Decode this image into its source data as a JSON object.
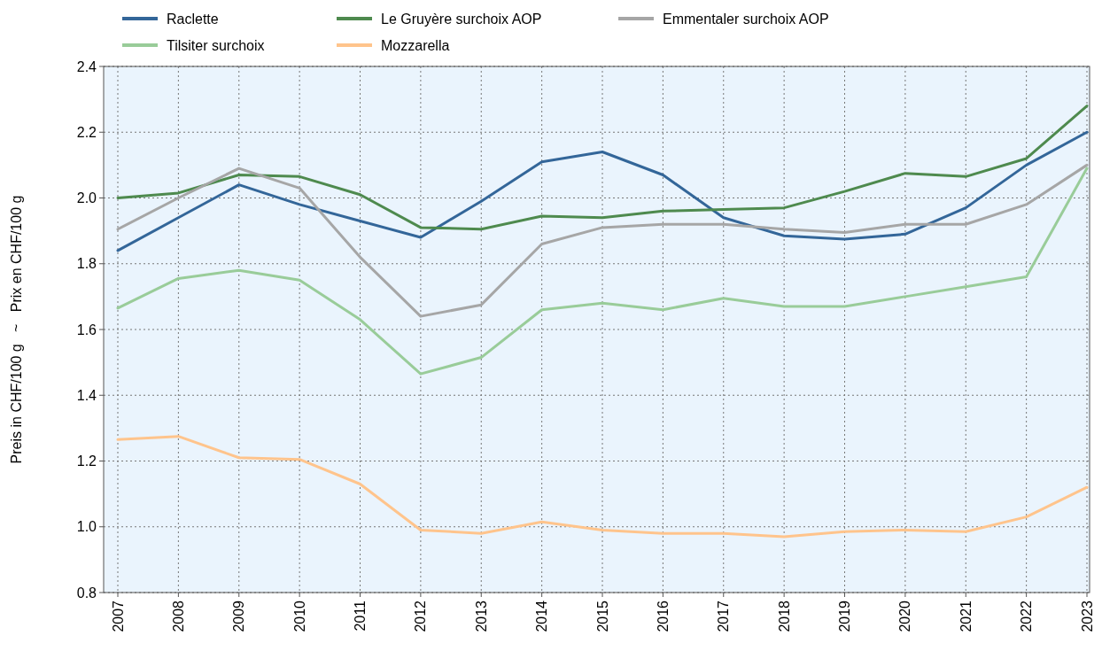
{
  "chart_data": {
    "type": "line",
    "ylabel": "Preis in CHF/100 g   ~   Prix en CHF/100 g",
    "categories": [
      "2007",
      "2008",
      "2009",
      "2010",
      "2011",
      "2012",
      "2013",
      "2014",
      "2015",
      "2016",
      "2017",
      "2018",
      "2019",
      "2020",
      "2021",
      "2022",
      "2023"
    ],
    "series": [
      {
        "name": "Raclette",
        "color": "#336699",
        "values": [
          1.84,
          1.94,
          2.04,
          1.98,
          1.93,
          1.88,
          1.99,
          2.11,
          2.14,
          2.07,
          1.94,
          1.885,
          1.875,
          1.89,
          1.97,
          2.1,
          2.2
        ]
      },
      {
        "name": "Le Gruyère surchoix AOP",
        "color": "#4e8a4e",
        "values": [
          2.0,
          2.015,
          2.07,
          2.065,
          2.01,
          1.91,
          1.905,
          1.945,
          1.94,
          1.96,
          1.965,
          1.97,
          2.02,
          2.075,
          2.065,
          2.12,
          2.28
        ]
      },
      {
        "name": "Emmentaler surchoix AOP",
        "color": "#a6a6a6",
        "values": [
          1.905,
          2.0,
          2.09,
          2.03,
          1.82,
          1.64,
          1.675,
          1.86,
          1.91,
          1.92,
          1.92,
          1.905,
          1.895,
          1.92,
          1.92,
          1.98,
          2.1
        ]
      },
      {
        "name": "Tilsiter surchoix",
        "color": "#99cc99",
        "values": [
          1.665,
          1.755,
          1.78,
          1.75,
          1.63,
          1.465,
          1.515,
          1.66,
          1.68,
          1.66,
          1.695,
          1.67,
          1.67,
          1.7,
          1.73,
          1.76,
          2.09
        ]
      },
      {
        "name": "Mozzarella",
        "color": "#ffc48c",
        "values": [
          1.265,
          1.275,
          1.21,
          1.205,
          1.13,
          0.99,
          0.98,
          1.015,
          0.99,
          0.98,
          0.98,
          0.97,
          0.985,
          0.99,
          0.985,
          1.03,
          1.12
        ]
      }
    ],
    "ylim": [
      0.8,
      2.4
    ],
    "yticks": [
      {
        "value": 0.8,
        "label": "0.8"
      },
      {
        "value": 1.0,
        "label": "1.0"
      },
      {
        "value": 1.2,
        "label": "1.2"
      },
      {
        "value": 1.4,
        "label": "1.4"
      },
      {
        "value": 1.6,
        "label": "1.6"
      },
      {
        "value": 1.8,
        "label": "1.8"
      },
      {
        "value": 2.0,
        "label": "2.0"
      },
      {
        "value": 2.2,
        "label": "2.2"
      },
      {
        "value": 2.4,
        "label": "2.4"
      }
    ],
    "grid": true,
    "legend": "top",
    "marker": "none",
    "line_style": "solid"
  }
}
